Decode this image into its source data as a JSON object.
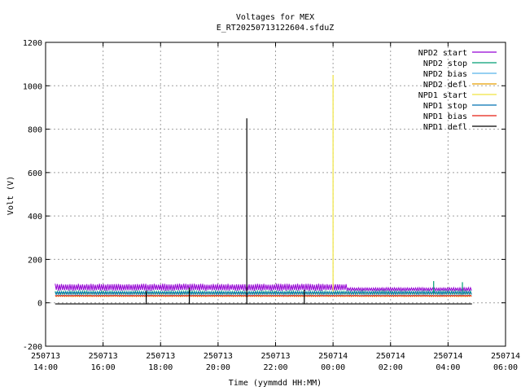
{
  "chart_data": {
    "type": "line",
    "title": "Voltages for MEX",
    "subtitle": "E_RT20250713122604.sfduZ",
    "xlabel": "Time (yymmdd HH:MM)",
    "ylabel": "Volt (V)",
    "ylim": [
      -200,
      1200
    ],
    "yticks": [
      -200,
      0,
      200,
      400,
      600,
      800,
      1000,
      1200
    ],
    "xlim": [
      "2025-07-13 14:00",
      "2025-07-14 06:00"
    ],
    "xticks": [
      {
        "date": "250713",
        "time": "14:00"
      },
      {
        "date": "250713",
        "time": "16:00"
      },
      {
        "date": "250713",
        "time": "18:00"
      },
      {
        "date": "250713",
        "time": "20:00"
      },
      {
        "date": "250713",
        "time": "22:00"
      },
      {
        "date": "250714",
        "time": "00:00"
      },
      {
        "date": "250714",
        "time": "02:00"
      },
      {
        "date": "250714",
        "time": "04:00"
      },
      {
        "date": "250714",
        "time": "06:00"
      }
    ],
    "grid": true,
    "legend_position": "top-right",
    "series": [
      {
        "name": "NPD2 start",
        "color": "#9400d3",
        "band": [
          55,
          88
        ],
        "end_band": [
          55,
          70
        ],
        "points": []
      },
      {
        "name": "NPD2 stop",
        "color": "#009e73",
        "band": [
          38,
          55
        ],
        "points": [
          {
            "x": "2025-07-14 03:30",
            "y": 100
          },
          {
            "x": "2025-07-14 04:30",
            "y": 95
          }
        ]
      },
      {
        "name": "NPD2 bias",
        "color": "#56b4e9",
        "band": [
          35,
          50
        ],
        "points": []
      },
      {
        "name": "NPD2 defl",
        "color": "#e69f00",
        "band": [
          28,
          35
        ],
        "points": []
      },
      {
        "name": "NPD1 start",
        "color": "#f0e442",
        "band": [
          40,
          45
        ],
        "points": [
          {
            "x": "2025-07-14 00:00",
            "y": 1050
          }
        ]
      },
      {
        "name": "NPD1 stop",
        "color": "#0072b2",
        "band": [
          40,
          50
        ],
        "points": []
      },
      {
        "name": "NPD1 bias",
        "color": "#e51e10",
        "band": [
          30,
          35
        ],
        "points": []
      },
      {
        "name": "NPD1 defl",
        "color": "#000000",
        "baseline": -5,
        "points": [
          {
            "x": "2025-07-13 21:00",
            "y": 850
          },
          {
            "x": "2025-07-13 17:30",
            "y": 55
          },
          {
            "x": "2025-07-13 19:00",
            "y": 70
          },
          {
            "x": "2025-07-13 23:00",
            "y": 60
          }
        ]
      }
    ],
    "data_start": "2025-07-13 14:20",
    "data_end": "2025-07-14 04:50"
  }
}
